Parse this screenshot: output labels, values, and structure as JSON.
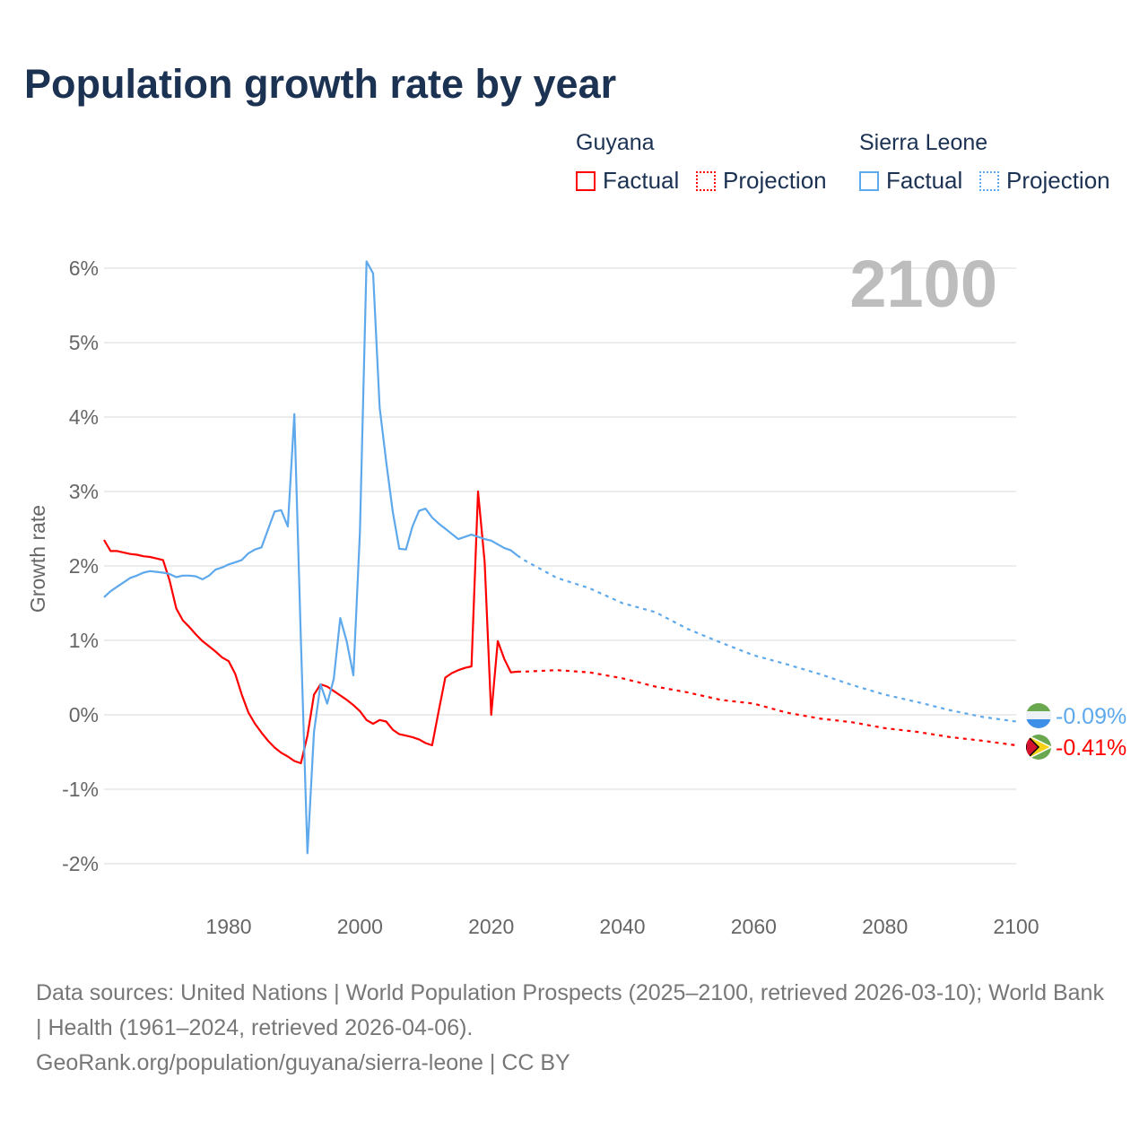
{
  "title": "Population growth rate by year",
  "legend": {
    "groups": [
      {
        "name": "Guyana",
        "factual": "Factual",
        "projection": "Projection",
        "color": "#ff0000"
      },
      {
        "name": "Sierra Leone",
        "factual": "Factual",
        "projection": "Projection",
        "color": "#5ea8ec"
      }
    ]
  },
  "year_display": "2100",
  "footer": {
    "line1": "Data sources: United Nations | World Population Prospects (2025–2100, retrieved 2026-03-10); World Bank | Health (1961–2024, retrieved 2026-04-06).",
    "line2": "GeoRank.org/population/guyana/sierra-leone | CC BY"
  },
  "chart_data": {
    "type": "line",
    "title": "Population growth rate by year",
    "xlabel": "",
    "ylabel": "Growth rate",
    "xlim": [
      1961,
      2100
    ],
    "ylim": [
      -2,
      6
    ],
    "x_ticks": [
      "1980",
      "2000",
      "2020",
      "2040",
      "2060",
      "2080",
      "2100"
    ],
    "y_ticks": [
      "6%",
      "5%",
      "4%",
      "3%",
      "2%",
      "1%",
      "0%",
      "-1%",
      "-2%"
    ],
    "grid": true,
    "series": [
      {
        "name": "Guyana Factual",
        "color": "#ff0000",
        "style": "solid",
        "x_start": 1961,
        "values": [
          2.35,
          2.2,
          2.2,
          2.18,
          2.16,
          2.15,
          2.13,
          2.12,
          2.1,
          2.08,
          1.8,
          1.43,
          1.27,
          1.18,
          1.08,
          0.99,
          0.92,
          0.85,
          0.77,
          0.72,
          0.55,
          0.27,
          0.03,
          -0.12,
          -0.24,
          -0.35,
          -0.44,
          -0.51,
          -0.56,
          -0.62,
          -0.65,
          -0.28,
          0.27,
          0.41,
          0.38,
          0.32,
          0.26,
          0.2,
          0.13,
          0.05,
          -0.07,
          -0.12,
          -0.07,
          -0.09,
          -0.2,
          -0.26,
          -0.28,
          -0.3,
          -0.33,
          -0.38,
          -0.41,
          0.05,
          0.5,
          0.56,
          0.6,
          0.63,
          0.65,
          3.0,
          2.05,
          0.0,
          0.99,
          0.75,
          0.57,
          0.58
        ]
      },
      {
        "name": "Guyana Projection",
        "color": "#ff0000",
        "style": "dotted",
        "x": [
          2024,
          2025,
          2030,
          2035,
          2040,
          2045,
          2050,
          2055,
          2060,
          2065,
          2070,
          2075,
          2080,
          2085,
          2090,
          2095,
          2100
        ],
        "values": [
          0.58,
          0.58,
          0.6,
          0.57,
          0.49,
          0.38,
          0.3,
          0.2,
          0.15,
          0.03,
          -0.05,
          -0.1,
          -0.18,
          -0.23,
          -0.3,
          -0.35,
          -0.41
        ]
      },
      {
        "name": "Sierra Leone Factual",
        "color": "#5ea8ec",
        "style": "solid",
        "x_start": 1961,
        "values": [
          1.58,
          1.66,
          1.72,
          1.78,
          1.84,
          1.87,
          1.91,
          1.93,
          1.92,
          1.91,
          1.89,
          1.85,
          1.87,
          1.87,
          1.86,
          1.82,
          1.87,
          1.95,
          1.98,
          2.02,
          2.05,
          2.08,
          2.17,
          2.22,
          2.25,
          2.49,
          2.73,
          2.75,
          2.53,
          4.04,
          1.0,
          -1.86,
          -0.23,
          0.41,
          0.15,
          0.48,
          1.3,
          0.98,
          0.53,
          2.45,
          6.09,
          5.93,
          4.13,
          3.4,
          2.73,
          2.23,
          2.22,
          2.53,
          2.74,
          2.77,
          2.65,
          2.57,
          2.5,
          2.43,
          2.36,
          2.39,
          2.42,
          2.39,
          2.36,
          2.34,
          2.29,
          2.24,
          2.21,
          2.14
        ]
      },
      {
        "name": "Sierra Leone Projection",
        "color": "#5ea8ec",
        "style": "dotted",
        "x": [
          2024,
          2025,
          2030,
          2035,
          2040,
          2045,
          2050,
          2055,
          2060,
          2065,
          2070,
          2075,
          2080,
          2085,
          2090,
          2095,
          2100
        ],
        "values": [
          2.14,
          2.08,
          1.84,
          1.7,
          1.5,
          1.38,
          1.15,
          0.97,
          0.8,
          0.68,
          0.55,
          0.4,
          0.27,
          0.17,
          0.06,
          -0.03,
          -0.09
        ]
      }
    ],
    "end_labels": [
      {
        "country": "Sierra Leone",
        "text": "-0.09%",
        "value": -0.09,
        "color": "#5ea8ec"
      },
      {
        "country": "Guyana",
        "text": "-0.41%",
        "value": -0.41,
        "color": "#ff0000"
      }
    ]
  }
}
